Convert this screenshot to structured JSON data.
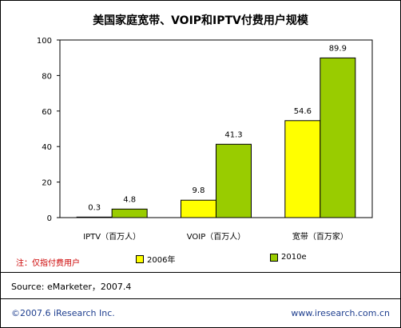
{
  "title": "美国家庭宽带、VOIP和IPTV付费用户规模",
  "note": "注：仅指付费用户",
  "source": "Source: eMarketer，2007.4",
  "footer_left": "©2007.6 iResearch Inc.",
  "footer_right": "www.iresearch.com.cn",
  "colors": {
    "series_2006": "#ffff00",
    "series_2010": "#99cc00"
  },
  "chart_data": {
    "type": "bar",
    "title": "美国家庭宽带、VOIP和IPTV付费用户规模",
    "categories": [
      "IPTV（百万人）",
      "VOIP（百万人）",
      "宽带（百万家）"
    ],
    "series": [
      {
        "name": "2006年",
        "values": [
          0.3,
          9.8,
          54.6
        ],
        "labels": [
          "0.3",
          "9.8",
          "54.6"
        ]
      },
      {
        "name": "2010e",
        "values": [
          4.8,
          41.3,
          89.9
        ],
        "labels": [
          "4.8",
          "41.3",
          "89.9"
        ]
      }
    ],
    "yticks": [
      "0",
      "20",
      "40",
      "60",
      "80",
      "100"
    ],
    "ylim": [
      0,
      100
    ],
    "grid": false,
    "legend_position": "bottom"
  }
}
